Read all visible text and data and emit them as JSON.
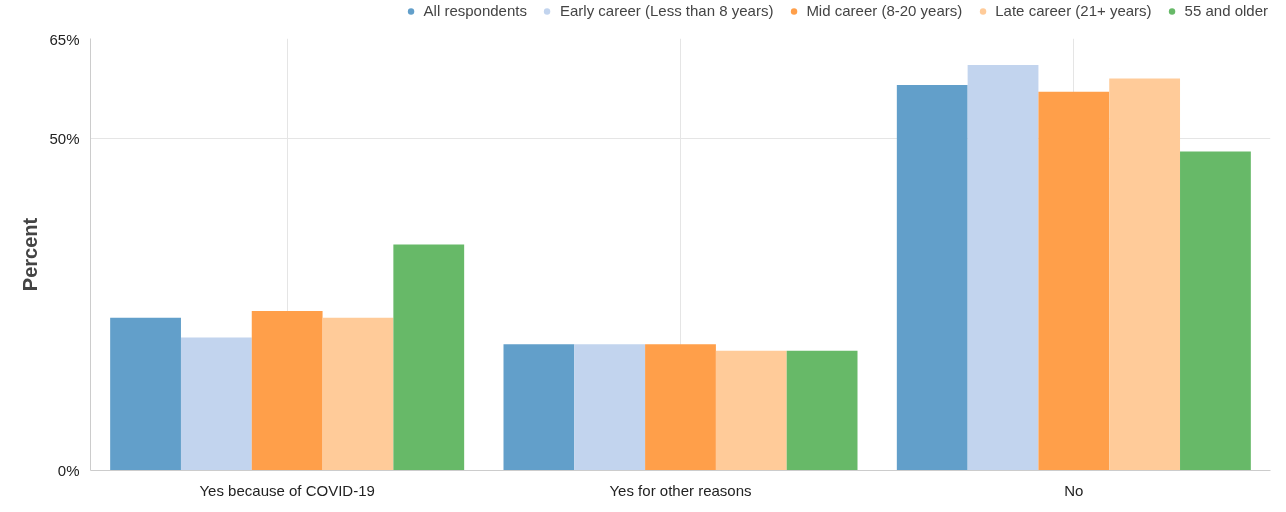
{
  "chart_data": {
    "type": "bar",
    "ylabel": "Percent",
    "categories": [
      "Yes because of COVID-19",
      "Yes for other reasons",
      "No"
    ],
    "series": [
      {
        "name": "All respondents",
        "color": "#629fca",
        "values": [
          23,
          19,
          58
        ]
      },
      {
        "name": "Early career (Less than 8 years)",
        "color": "#c2d4ee",
        "values": [
          20,
          19,
          61
        ]
      },
      {
        "name": "Mid career (8-20 years)",
        "color": "#ff9f4a",
        "values": [
          24,
          19,
          57
        ]
      },
      {
        "name": "Late career (21+ years)",
        "color": "#ffcb99",
        "values": [
          23,
          18,
          59
        ]
      },
      {
        "name": "55 and older",
        "color": "#67b968",
        "values": [
          34,
          18,
          48
        ]
      }
    ],
    "ylim": [
      0,
      65
    ],
    "yticks": [
      {
        "value": 0,
        "label": "0%"
      },
      {
        "value": 50,
        "label": "50%"
      },
      {
        "value": 65,
        "label": "65%"
      }
    ],
    "grid": true,
    "legend": "top"
  }
}
